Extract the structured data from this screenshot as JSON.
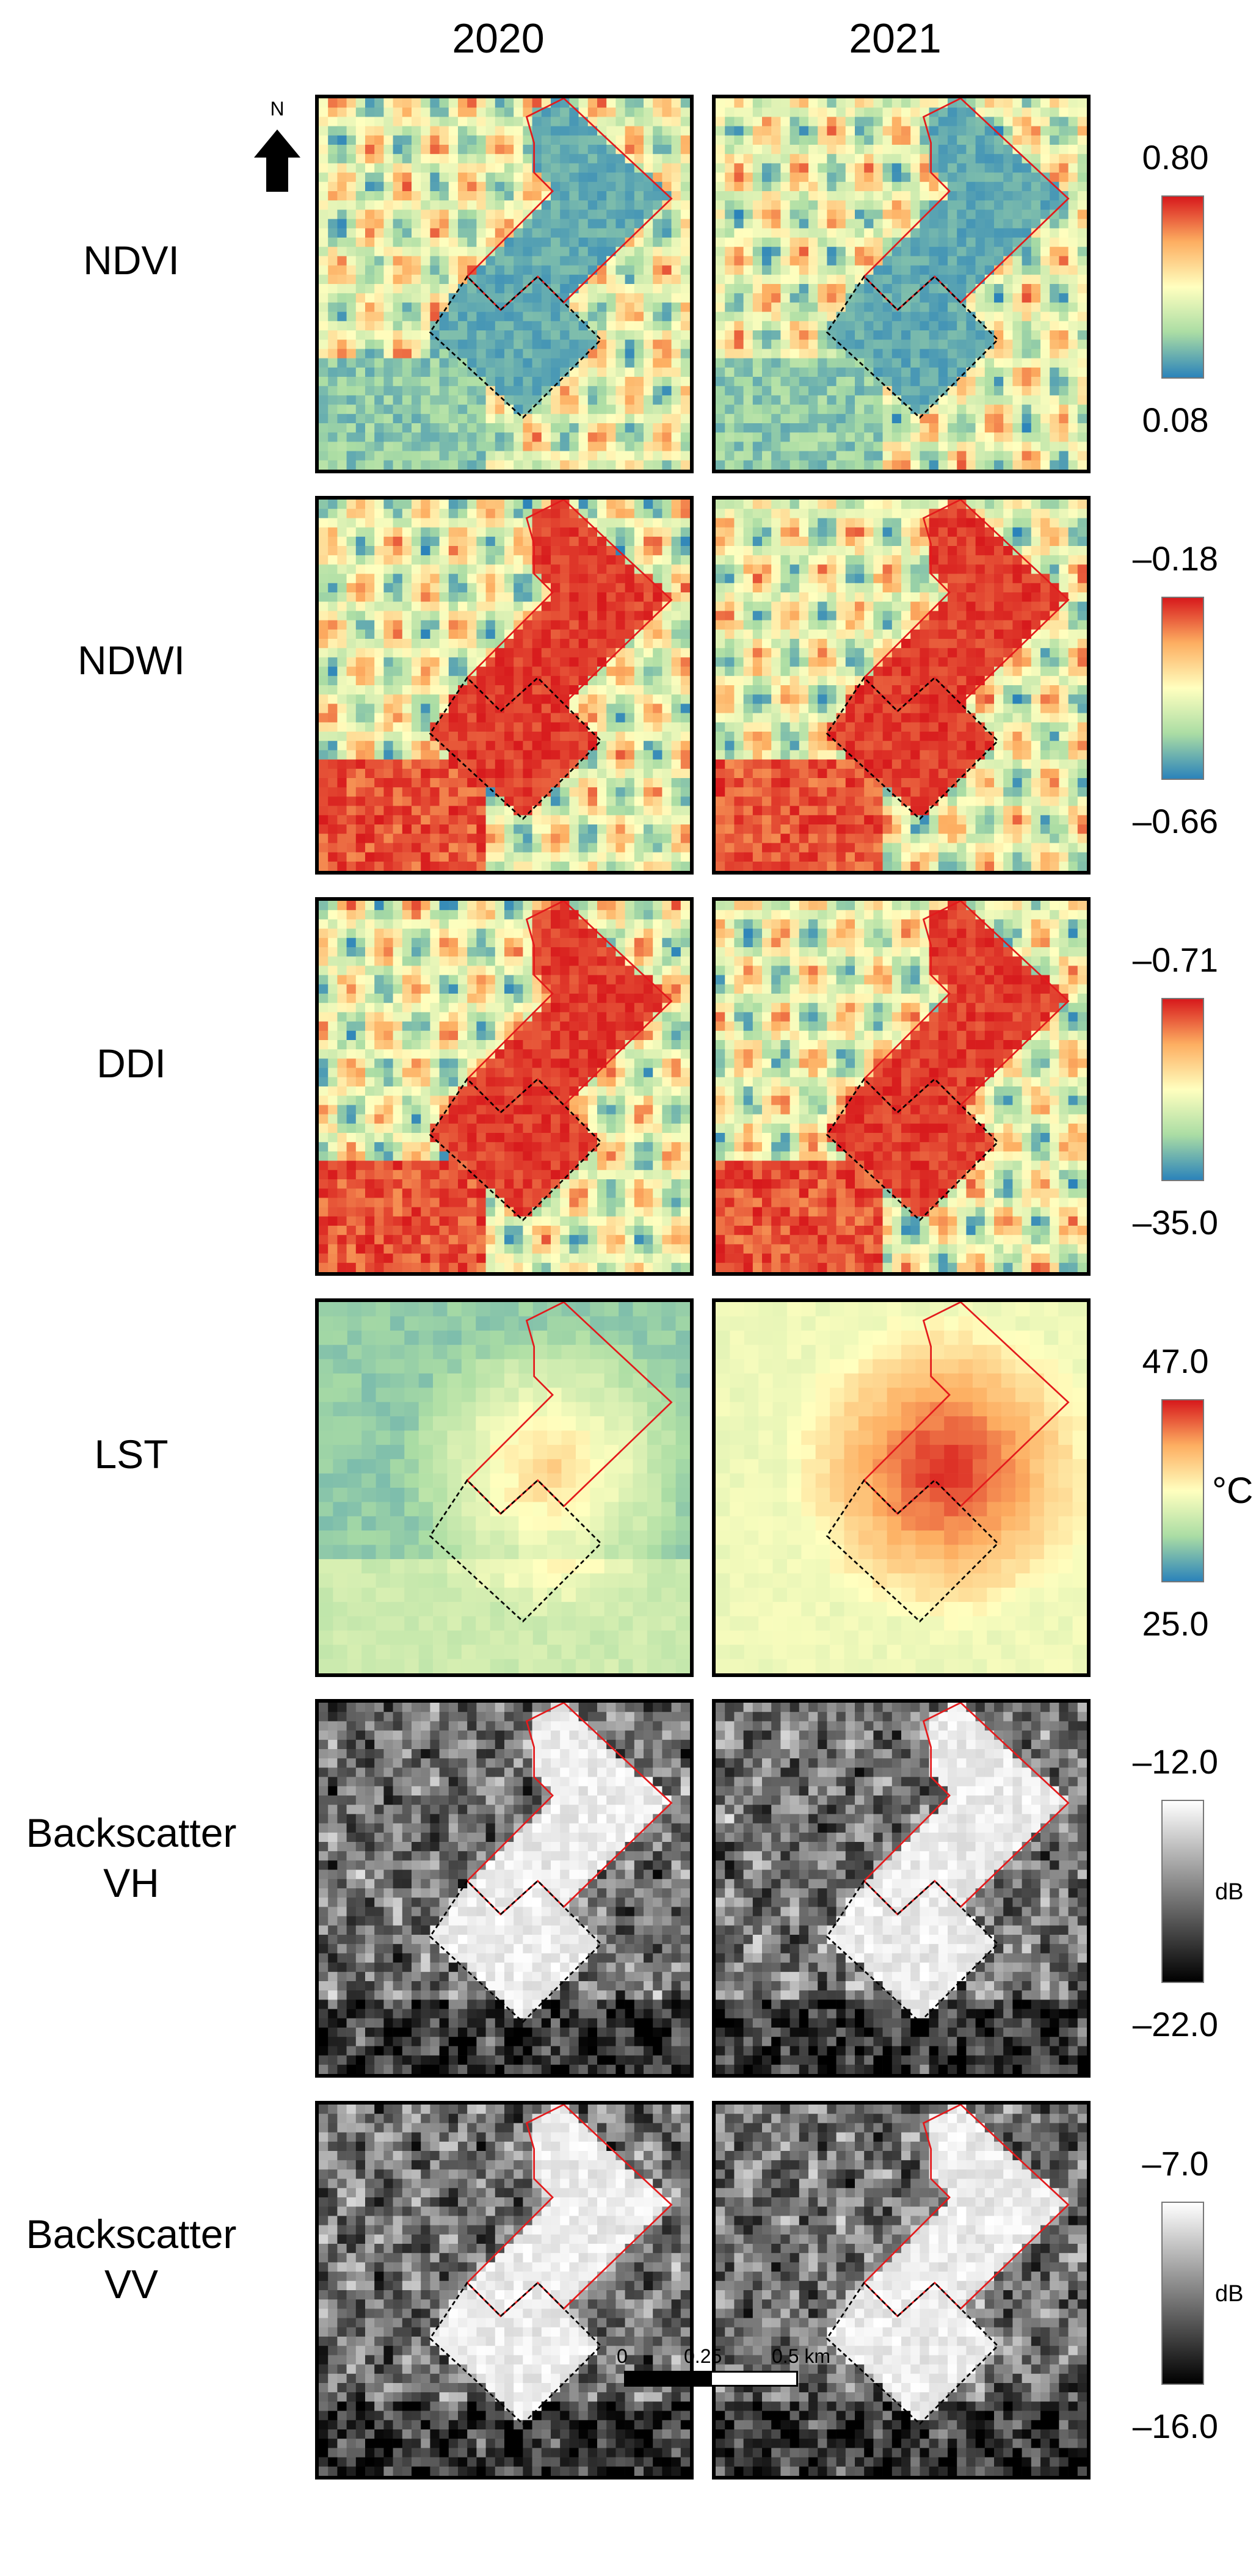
{
  "columns": [
    "2020",
    "2021"
  ],
  "north_label": "N",
  "rows": [
    {
      "label": "NDVI",
      "max": "0.80",
      "min": "0.08",
      "unit": "",
      "colormap": "spectral"
    },
    {
      "label": "NDWI",
      "max": "–0.18",
      "min": "–0.66",
      "unit": "",
      "colormap": "spectral"
    },
    {
      "label": "DDI",
      "max": "–0.71",
      "min": "–35.0",
      "unit": "",
      "colormap": "spectral"
    },
    {
      "label": "LST",
      "max": "47.0",
      "min": "25.0",
      "unit": "°C",
      "colormap": "spectral"
    },
    {
      "label": "Backscatter\nVH",
      "max": "–12.0",
      "min": "–22.0",
      "unit": "dB",
      "colormap": "gray"
    },
    {
      "label": "Backscatter\nVV",
      "max": "–7.0",
      "min": "–16.0",
      "unit": "dB",
      "colormap": "gray"
    }
  ],
  "scale_bar": {
    "labels": [
      "0",
      "0.25",
      "0.5 km"
    ]
  },
  "colors": {
    "spectral": [
      "#2b83ba",
      "#abdda4",
      "#ffffbf",
      "#fdae61",
      "#d7191c"
    ],
    "gray": [
      "#000000",
      "#ffffff"
    ],
    "outline": "#e31a1c",
    "dashed": "#000000"
  }
}
